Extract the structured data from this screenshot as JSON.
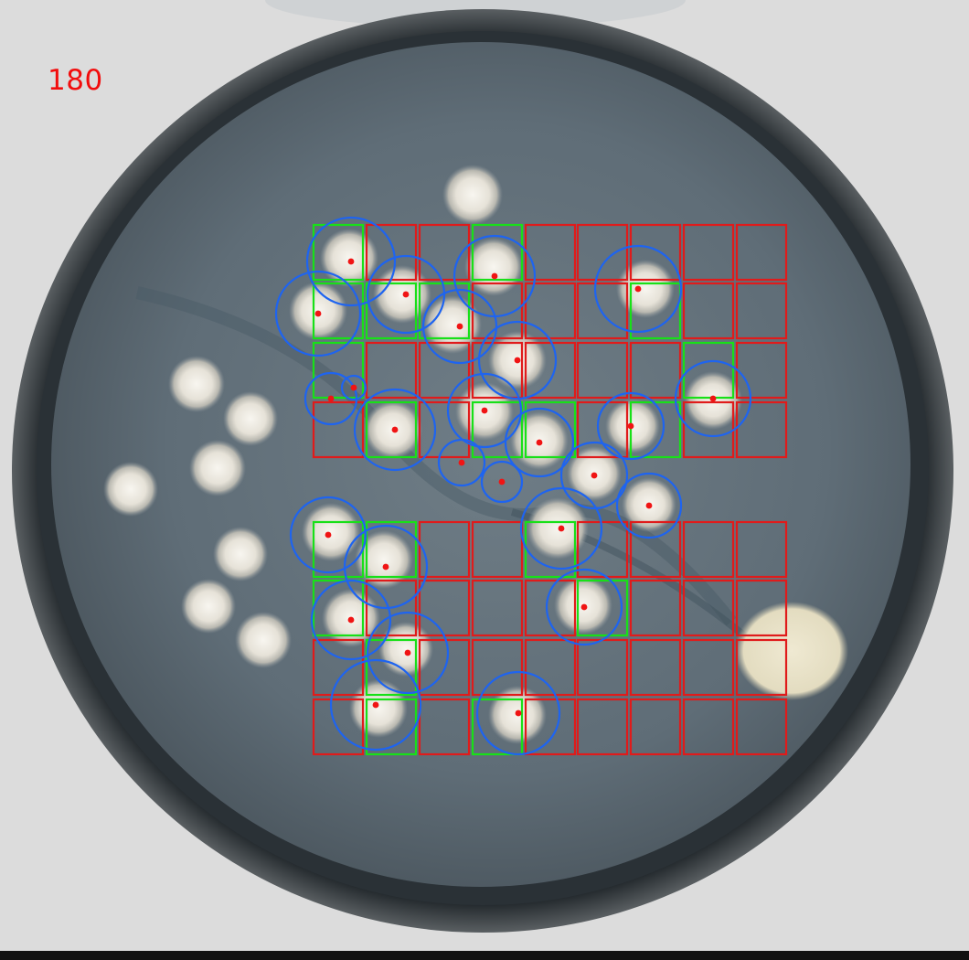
{
  "overlay": {
    "count_label": "180"
  },
  "colors": {
    "empty_cell": "#e01b1b",
    "occupied_cell": "#18e018",
    "detection_circle": "#1e64f0",
    "colony_center": "#f01414",
    "count_text": "#f20d0d"
  },
  "icons": {
    "colony_marker": "colony-center-dot",
    "detection_marker": "detection-circle"
  }
}
